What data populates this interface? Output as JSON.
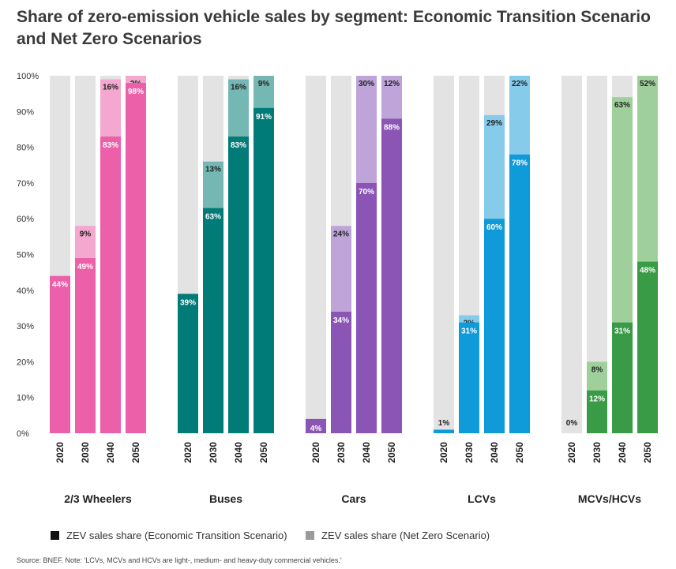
{
  "title": "Share of zero-emission vehicle sales by segment: Economic Transition Scenario and Net Zero Scenarios",
  "source": "Source: BNEF. Note: 'LCVs, MCVs and HCVs are light-, medium- and heavy-duty commercial vehicles.'",
  "legend": [
    {
      "label": "ZEV sales share (Economic Transition Scenario)",
      "color": "#111111"
    },
    {
      "label": "ZEV sales share (Net Zero Scenario)",
      "color": "#9a9a9a"
    }
  ],
  "chart_data": {
    "type": "bar",
    "stacked": true,
    "ylim": [
      0,
      100
    ],
    "y_ticks": [
      "0%",
      "10%",
      "20%",
      "30%",
      "40%",
      "50%",
      "60%",
      "70%",
      "80%",
      "90%",
      "100%"
    ],
    "background_color": "#e3e3e3",
    "groups": [
      {
        "name": "2/3 Wheelers",
        "color_ets": "#ec5fa9",
        "color_nz": "#f4a7cf",
        "categories": [
          "2020",
          "2030",
          "2040",
          "2050"
        ],
        "ets": [
          44,
          49,
          83,
          98
        ],
        "nz": [
          null,
          9,
          16,
          2
        ],
        "ets_labels": [
          "44%",
          "49%",
          "83%",
          "98%"
        ],
        "nz_labels": [
          "",
          "9%",
          "16%",
          "2%"
        ]
      },
      {
        "name": "Buses",
        "color_ets": "#007b77",
        "color_nz": "#74b7b3",
        "categories": [
          "2020",
          "2030",
          "2040",
          "2050"
        ],
        "ets": [
          39,
          63,
          83,
          91
        ],
        "nz": [
          null,
          13,
          16,
          9
        ],
        "ets_labels": [
          "39%",
          "63%",
          "83%",
          "91%"
        ],
        "nz_labels": [
          "",
          "13%",
          "16%",
          "9%"
        ]
      },
      {
        "name": "Cars",
        "color_ets": "#8a55b5",
        "color_nz": "#bea4d8",
        "categories": [
          "2020",
          "2030",
          "2040",
          "2050"
        ],
        "ets": [
          4,
          34,
          70,
          88
        ],
        "nz": [
          null,
          24,
          30,
          12
        ],
        "ets_labels": [
          "4%",
          "34%",
          "70%",
          "88%"
        ],
        "nz_labels": [
          "",
          "24%",
          "30%",
          "12%"
        ]
      },
      {
        "name": "LCVs",
        "color_ets": "#0f9ad9",
        "color_nz": "#86cbea",
        "categories": [
          "2020",
          "2030",
          "2040",
          "2050"
        ],
        "ets": [
          1,
          31,
          60,
          78
        ],
        "nz": [
          null,
          2,
          29,
          22
        ],
        "ets_labels": [
          "1%",
          "31%",
          "60%",
          "78%"
        ],
        "nz_labels": [
          "",
          "2%",
          "29%",
          "22%"
        ]
      },
      {
        "name": "MCVs/HCVs",
        "color_ets": "#3a9b47",
        "color_nz": "#9fd09b",
        "categories": [
          "2020",
          "2030",
          "2040",
          "2050"
        ],
        "ets": [
          0,
          12,
          31,
          48
        ],
        "nz": [
          null,
          8,
          63,
          52
        ],
        "ets_labels": [
          "0%",
          "12%",
          "31%",
          "48%"
        ],
        "nz_labels": [
          "",
          "8%",
          "63%",
          "52%"
        ]
      }
    ]
  }
}
